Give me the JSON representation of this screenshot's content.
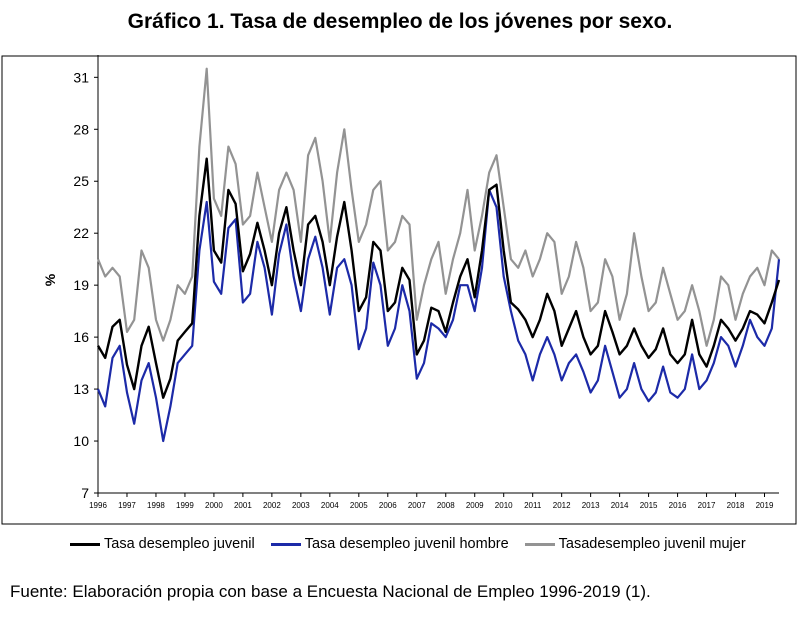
{
  "title": "Gráfico 1. Tasa de desempleo de los jóvenes por sexo.",
  "source": "Fuente: Elaboración propia con base a Encuesta Nacional de Empleo 1996-2019 (1).",
  "chart_data": {
    "type": "line",
    "title": "Gráfico 1. Tasa de desempleo de los jóvenes por sexo.",
    "xlabel": "",
    "ylabel": "%",
    "ylim": [
      7,
      32
    ],
    "xlim": [
      1996.0,
      2019.5
    ],
    "yticks": [
      7,
      10,
      13,
      16,
      19,
      22,
      25,
      28,
      31
    ],
    "xticks": [
      "1996",
      "1997",
      "1998",
      "1999",
      "2000",
      "2001",
      "2002",
      "2003",
      "2004",
      "2005",
      "2006",
      "2007",
      "2008",
      "2009",
      "2010",
      "2011",
      "2012",
      "2013",
      "2014",
      "2015",
      "2016",
      "2017",
      "2018",
      "2019"
    ],
    "grid": false,
    "legend_position": "bottom",
    "x": [
      1996.0,
      1996.25,
      1996.5,
      1996.75,
      1997.0,
      1997.25,
      1997.5,
      1997.75,
      1998.0,
      1998.25,
      1998.5,
      1998.75,
      1999.0,
      1999.25,
      1999.5,
      1999.75,
      2000.0,
      2000.25,
      2000.5,
      2000.75,
      2001.0,
      2001.25,
      2001.5,
      2001.75,
      2002.0,
      2002.25,
      2002.5,
      2002.75,
      2003.0,
      2003.25,
      2003.5,
      2003.75,
      2004.0,
      2004.25,
      2004.5,
      2004.75,
      2005.0,
      2005.25,
      2005.5,
      2005.75,
      2006.0,
      2006.25,
      2006.5,
      2006.75,
      2007.0,
      2007.25,
      2007.5,
      2007.75,
      2008.0,
      2008.25,
      2008.5,
      2008.75,
      2009.0,
      2009.25,
      2009.5,
      2009.75,
      2010.0,
      2010.25,
      2010.5,
      2010.75,
      2011.0,
      2011.25,
      2011.5,
      2011.75,
      2012.0,
      2012.25,
      2012.5,
      2012.75,
      2013.0,
      2013.25,
      2013.5,
      2013.75,
      2014.0,
      2014.25,
      2014.5,
      2014.75,
      2015.0,
      2015.25,
      2015.5,
      2015.75,
      2016.0,
      2016.25,
      2016.5,
      2016.75,
      2017.0,
      2017.25,
      2017.5,
      2017.75,
      2018.0,
      2018.25,
      2018.5,
      2018.75,
      2019.0,
      2019.25,
      2019.5
    ],
    "series": [
      {
        "name": "Tasa desempleo juvenil",
        "color": "#000000",
        "values": [
          15.5,
          14.8,
          16.6,
          17.0,
          14.4,
          13.0,
          15.5,
          16.6,
          14.5,
          12.5,
          13.6,
          15.8,
          16.3,
          16.8,
          23.0,
          26.3,
          21.0,
          20.3,
          24.5,
          23.7,
          19.8,
          20.8,
          22.6,
          21.0,
          19.0,
          22.0,
          23.5,
          21.0,
          19.0,
          22.5,
          23.0,
          21.5,
          19.0,
          21.8,
          23.8,
          21.0,
          17.5,
          18.3,
          21.5,
          21.0,
          17.5,
          18.0,
          20.0,
          19.3,
          15.0,
          15.8,
          17.7,
          17.5,
          16.3,
          18.0,
          19.5,
          20.5,
          18.3,
          21.0,
          24.5,
          24.8,
          21.0,
          18.0,
          17.6,
          17.0,
          16.0,
          17.0,
          18.5,
          17.5,
          15.5,
          16.5,
          17.5,
          16.0,
          15.0,
          15.5,
          17.5,
          16.3,
          15.0,
          15.5,
          16.5,
          15.5,
          14.8,
          15.3,
          16.5,
          15.0,
          14.5,
          15.0,
          17.0,
          15.0,
          14.3,
          15.5,
          17.0,
          16.5,
          15.8,
          16.5,
          17.5,
          17.3,
          16.8,
          18.0,
          19.3
        ]
      },
      {
        "name": "Tasa desempleo juvenil hombre",
        "color": "#1c2aa8",
        "values": [
          13.0,
          12.0,
          14.8,
          15.5,
          12.8,
          11.0,
          13.5,
          14.5,
          12.5,
          10.0,
          12.0,
          14.5,
          15.0,
          15.5,
          21.0,
          23.8,
          19.2,
          18.5,
          22.3,
          22.8,
          18.0,
          18.5,
          21.5,
          20.0,
          17.3,
          20.8,
          22.5,
          19.5,
          17.5,
          20.5,
          21.8,
          20.0,
          17.3,
          20.0,
          20.5,
          19.0,
          15.3,
          16.5,
          20.3,
          19.0,
          15.5,
          16.5,
          19.0,
          17.5,
          13.6,
          14.5,
          16.8,
          16.5,
          16.0,
          17.0,
          19.0,
          19.0,
          17.5,
          20.0,
          24.5,
          23.5,
          19.5,
          17.5,
          15.8,
          15.0,
          13.5,
          15.0,
          16.0,
          15.0,
          13.5,
          14.5,
          15.0,
          14.0,
          12.8,
          13.5,
          15.5,
          14.0,
          12.5,
          13.0,
          14.5,
          13.0,
          12.3,
          12.8,
          14.3,
          12.8,
          12.5,
          13.0,
          15.0,
          13.0,
          13.5,
          14.5,
          16.0,
          15.5,
          14.3,
          15.5,
          17.0,
          16.0,
          15.5,
          16.5,
          20.5
        ]
      },
      {
        "name": "Tasadesempleo juvenil mujer",
        "color": "#939393",
        "values": [
          20.5,
          19.5,
          20.0,
          19.5,
          16.3,
          17.0,
          21.0,
          20.0,
          17.0,
          15.8,
          17.0,
          19.0,
          18.5,
          19.5,
          27.0,
          31.5,
          24.0,
          23.0,
          27.0,
          26.0,
          22.5,
          23.0,
          25.5,
          23.5,
          21.5,
          24.5,
          25.5,
          24.5,
          21.5,
          26.5,
          27.5,
          25.0,
          21.5,
          25.5,
          28.0,
          24.5,
          21.5,
          22.5,
          24.5,
          25.0,
          21.0,
          21.5,
          23.0,
          22.5,
          17.0,
          19.0,
          20.5,
          21.5,
          18.5,
          20.5,
          22.0,
          24.5,
          21.0,
          23.0,
          25.5,
          26.5,
          23.5,
          20.5,
          20.0,
          21.0,
          19.5,
          20.5,
          22.0,
          21.5,
          18.5,
          19.5,
          21.5,
          20.0,
          17.5,
          18.0,
          20.5,
          19.5,
          17.0,
          18.5,
          22.0,
          19.5,
          17.5,
          18.0,
          20.0,
          18.5,
          17.0,
          17.5,
          19.0,
          17.5,
          15.5,
          17.0,
          19.5,
          19.0,
          17.0,
          18.5,
          19.5,
          20.0,
          19.0,
          21.0,
          20.5
        ]
      }
    ]
  }
}
